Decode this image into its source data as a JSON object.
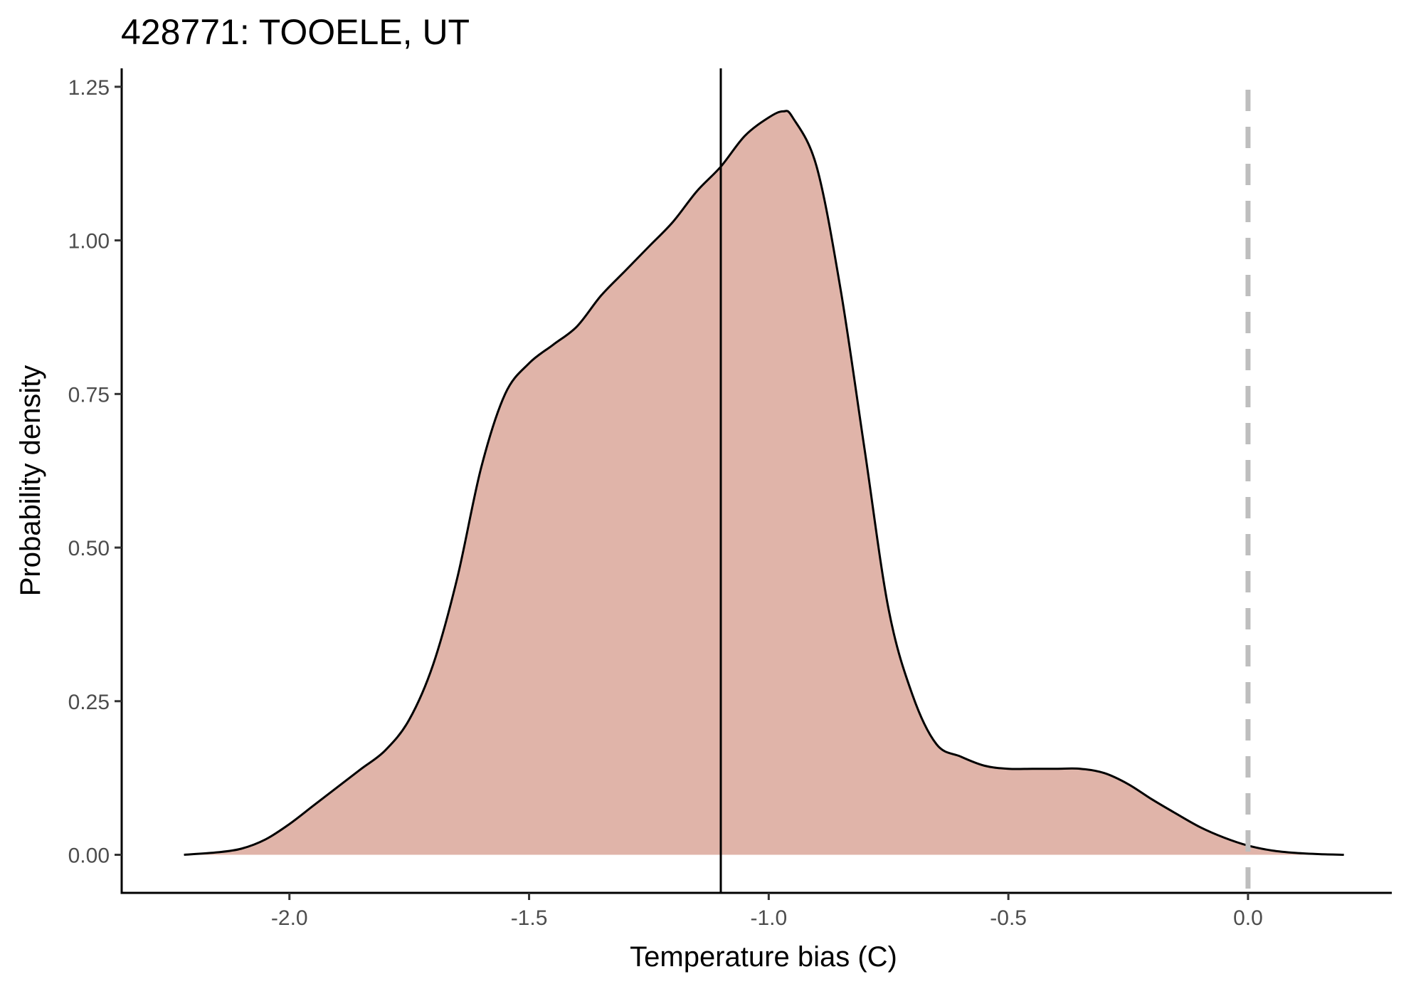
{
  "chart_data": {
    "type": "area",
    "title": "428771: TOOELE, UT",
    "xlabel": "Temperature bias (C)",
    "ylabel": "Probability density",
    "xlim": [
      -2.35,
      0.3
    ],
    "ylim": [
      -0.062,
      1.28
    ],
    "x_ticks": [
      -2.0,
      -1.5,
      -1.0,
      -0.5,
      0.0
    ],
    "x_tick_labels": [
      "-2.0",
      "-1.5",
      "-1.0",
      "-0.5",
      "0.0"
    ],
    "y_ticks": [
      0,
      0.25,
      0.5,
      0.75,
      1.0,
      1.25
    ],
    "y_tick_labels": [
      "0.00",
      "0.25",
      "0.50",
      "0.75",
      "1.00",
      "1.25"
    ],
    "grid": false,
    "legend": "none",
    "fill_color": "#e0b4a9",
    "line_color": "#000000",
    "reference_lines": [
      {
        "x": -1.1,
        "style": "solid",
        "color": "#000000"
      },
      {
        "x": 0.0,
        "style": "dashed",
        "color": "#bebebe"
      }
    ],
    "x": [
      -2.22,
      -2.15,
      -2.1,
      -2.05,
      -2.0,
      -1.95,
      -1.9,
      -1.85,
      -1.8,
      -1.75,
      -1.7,
      -1.65,
      -1.6,
      -1.55,
      -1.5,
      -1.45,
      -1.4,
      -1.35,
      -1.3,
      -1.25,
      -1.2,
      -1.15,
      -1.1,
      -1.05,
      -1.0,
      -0.97,
      -0.95,
      -0.9,
      -0.85,
      -0.8,
      -0.75,
      -0.7,
      -0.65,
      -0.6,
      -0.55,
      -0.5,
      -0.45,
      -0.4,
      -0.35,
      -0.3,
      -0.25,
      -0.2,
      -0.15,
      -0.1,
      -0.05,
      0.0,
      0.05,
      0.1,
      0.15,
      0.2
    ],
    "density": [
      0.0,
      0.004,
      0.01,
      0.025,
      0.05,
      0.08,
      0.11,
      0.14,
      0.17,
      0.22,
      0.31,
      0.45,
      0.63,
      0.75,
      0.8,
      0.83,
      0.86,
      0.91,
      0.95,
      0.99,
      1.03,
      1.08,
      1.12,
      1.17,
      1.2,
      1.21,
      1.2,
      1.12,
      0.92,
      0.66,
      0.4,
      0.26,
      0.18,
      0.16,
      0.145,
      0.14,
      0.14,
      0.14,
      0.14,
      0.133,
      0.115,
      0.09,
      0.067,
      0.045,
      0.028,
      0.015,
      0.007,
      0.003,
      0.001,
      0.0
    ]
  }
}
